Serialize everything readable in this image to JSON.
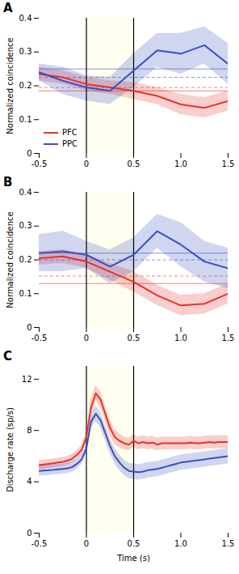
{
  "chart_data": [
    {
      "type": "line",
      "title": "A",
      "ylabel": "Normalized coincidence",
      "x": [
        -0.5,
        -0.25,
        0.0,
        0.25,
        0.5,
        0.75,
        1.0,
        1.25,
        1.5
      ],
      "series": [
        {
          "name": "PFC",
          "color": "#e8312a",
          "values": [
            0.235,
            0.225,
            0.205,
            0.195,
            0.185,
            0.17,
            0.145,
            0.135,
            0.155
          ],
          "upper": [
            0.255,
            0.245,
            0.225,
            0.215,
            0.21,
            0.195,
            0.175,
            0.165,
            0.185
          ],
          "lower": [
            0.215,
            0.205,
            0.185,
            0.175,
            0.16,
            0.145,
            0.115,
            0.105,
            0.125
          ],
          "reference_lines": [
            {
              "value": 0.185,
              "line_style": "solid"
            },
            {
              "value": 0.195,
              "line_style": "dashed"
            }
          ]
        },
        {
          "name": "PPC",
          "color": "#3a4fc0",
          "values": [
            0.24,
            0.215,
            0.195,
            0.185,
            0.245,
            0.305,
            0.295,
            0.32,
            0.265
          ],
          "upper": [
            0.265,
            0.255,
            0.23,
            0.225,
            0.295,
            0.355,
            0.355,
            0.375,
            0.325
          ],
          "lower": [
            0.215,
            0.175,
            0.155,
            0.145,
            0.195,
            0.255,
            0.235,
            0.265,
            0.205
          ],
          "reference_lines": [
            {
              "value": 0.25,
              "line_style": "solid"
            },
            {
              "value": 0.225,
              "line_style": "dashed"
            }
          ]
        }
      ],
      "shaded_region": {
        "range": [
          0.0,
          0.5
        ],
        "color": "#fffff0"
      },
      "vertical_lines": {
        "values": [
          0,
          0.5
        ],
        "color": "black"
      },
      "xlim": [
        -0.5,
        1.5
      ],
      "xticks": [
        -0.5,
        0,
        0.5,
        {
          "value": 1.0,
          "label": "1.0"
        },
        1.5
      ],
      "ylim": [
        0,
        0.4
      ],
      "yticks": [
        0,
        0.1,
        0.2,
        0.3,
        0.4
      ],
      "legend": "lower left"
    },
    {
      "type": "line",
      "title": "B",
      "ylabel": "Normalized coincidence",
      "x": [
        -0.5,
        -0.25,
        0.0,
        0.25,
        0.5,
        0.75,
        1.0,
        1.25,
        1.5
      ],
      "series": [
        {
          "color": "#e8312a",
          "values": [
            0.205,
            0.21,
            0.195,
            0.165,
            0.135,
            0.095,
            0.065,
            0.07,
            0.1
          ],
          "upper": [
            0.225,
            0.23,
            0.215,
            0.19,
            0.165,
            0.125,
            0.095,
            0.1,
            0.13
          ],
          "lower": [
            0.185,
            0.19,
            0.175,
            0.14,
            0.105,
            0.065,
            0.035,
            0.04,
            0.07
          ],
          "reference_lines": [
            {
              "value": 0.13,
              "line_style": "solid"
            },
            {
              "value": 0.152,
              "line_style": "dashed"
            }
          ]
        },
        {
          "color": "#3a4fc0",
          "values": [
            0.22,
            0.225,
            0.215,
            0.18,
            0.215,
            0.285,
            0.245,
            0.195,
            0.175
          ],
          "upper": [
            0.275,
            0.285,
            0.255,
            0.23,
            0.265,
            0.335,
            0.31,
            0.255,
            0.235
          ],
          "lower": [
            0.165,
            0.165,
            0.175,
            0.13,
            0.165,
            0.235,
            0.18,
            0.135,
            0.115
          ],
          "reference_lines": [
            {
              "value": 0.22,
              "line_style": "solid"
            },
            {
              "value": 0.2,
              "line_style": "dashed"
            }
          ]
        }
      ],
      "shaded_region": {
        "range": [
          0.0,
          0.5
        ],
        "color": "#fffff0"
      },
      "vertical_lines": {
        "values": [
          0,
          0.5
        ],
        "color": "black"
      },
      "xlim": [
        -0.5,
        1.5
      ],
      "xticks": [
        -0.5,
        0,
        0.5,
        {
          "value": 1.0,
          "label": "1.0"
        },
        1.5
      ],
      "ylim": [
        0,
        0.4
      ],
      "yticks": [
        0,
        0.1,
        0.2,
        0.3,
        0.4
      ]
    },
    {
      "type": "line",
      "title": "C",
      "ylabel": "Discharge rate (sp/s)",
      "xlabel": "Time (s)",
      "x": [
        -0.5,
        -0.45,
        -0.4,
        -0.35,
        -0.3,
        -0.25,
        -0.2,
        -0.15,
        -0.1,
        -0.05,
        0.0,
        0.05,
        0.1,
        0.15,
        0.2,
        0.25,
        0.3,
        0.35,
        0.4,
        0.45,
        0.5,
        0.55,
        0.6,
        0.65,
        0.7,
        0.75,
        0.8,
        0.85,
        0.9,
        0.95,
        1.0,
        1.05,
        1.1,
        1.15,
        1.2,
        1.25,
        1.3,
        1.35,
        1.4,
        1.45,
        1.5
      ],
      "series": [
        {
          "color": "#e8312a",
          "values": [
            5.3,
            5.35,
            5.4,
            5.45,
            5.5,
            5.55,
            5.65,
            5.8,
            6.1,
            6.5,
            7.5,
            9.8,
            10.9,
            10.4,
            9.3,
            8.2,
            7.5,
            7.2,
            7.0,
            6.9,
            7.2,
            7.0,
            7.1,
            7.0,
            7.05,
            6.9,
            7.0,
            7.0,
            7.0,
            7.0,
            7.0,
            7.0,
            7.05,
            7.0,
            7.0,
            7.05,
            7.1,
            7.05,
            7.1,
            7.1,
            7.1
          ],
          "upper": [
            5.65,
            5.7,
            5.75,
            5.8,
            5.85,
            5.9,
            6.0,
            6.15,
            6.45,
            6.85,
            7.95,
            10.5,
            11.5,
            11.0,
            9.9,
            8.8,
            8.1,
            7.75,
            7.5,
            7.4,
            7.7,
            7.5,
            7.6,
            7.5,
            7.55,
            7.4,
            7.5,
            7.5,
            7.5,
            7.5,
            7.5,
            7.5,
            7.55,
            7.5,
            7.5,
            7.55,
            7.6,
            7.55,
            7.6,
            7.6,
            7.6
          ],
          "lower": [
            4.95,
            5.0,
            5.05,
            5.1,
            5.15,
            5.2,
            5.3,
            5.45,
            5.75,
            6.15,
            7.05,
            9.1,
            10.3,
            9.8,
            8.7,
            7.6,
            6.9,
            6.65,
            6.5,
            6.4,
            6.7,
            6.5,
            6.6,
            6.5,
            6.55,
            6.4,
            6.5,
            6.5,
            6.5,
            6.5,
            6.5,
            6.5,
            6.55,
            6.5,
            6.5,
            6.55,
            6.6,
            6.55,
            6.6,
            6.6,
            6.6
          ]
        },
        {
          "color": "#3a4fc0",
          "values": [
            4.85,
            4.88,
            4.9,
            4.93,
            4.97,
            5.0,
            5.05,
            5.15,
            5.4,
            5.75,
            6.6,
            8.7,
            9.3,
            8.8,
            7.8,
            6.8,
            6.0,
            5.5,
            5.1,
            4.85,
            4.8,
            4.75,
            4.8,
            4.9,
            4.95,
            5.0,
            5.1,
            5.2,
            5.3,
            5.4,
            5.5,
            5.55,
            5.6,
            5.65,
            5.7,
            5.75,
            5.8,
            5.85,
            5.9,
            5.95,
            6.0
          ],
          "upper": [
            5.25,
            5.28,
            5.3,
            5.33,
            5.37,
            5.4,
            5.45,
            5.55,
            5.8,
            6.15,
            7.0,
            9.2,
            9.9,
            9.4,
            8.4,
            7.4,
            6.6,
            6.1,
            5.7,
            5.45,
            5.4,
            5.35,
            5.4,
            5.5,
            5.55,
            5.6,
            5.7,
            5.8,
            5.9,
            6.0,
            6.1,
            6.15,
            6.2,
            6.25,
            6.3,
            6.35,
            6.4,
            6.45,
            6.5,
            6.55,
            6.6
          ],
          "lower": [
            4.45,
            4.48,
            4.5,
            4.53,
            4.57,
            4.6,
            4.65,
            4.75,
            5.0,
            5.35,
            6.2,
            8.2,
            8.7,
            8.2,
            7.2,
            6.2,
            5.4,
            4.9,
            4.5,
            4.25,
            4.2,
            4.15,
            4.2,
            4.3,
            4.35,
            4.4,
            4.5,
            4.6,
            4.7,
            4.8,
            4.9,
            4.95,
            5.0,
            5.05,
            5.1,
            5.15,
            5.2,
            5.25,
            5.3,
            5.35,
            5.4
          ]
        }
      ],
      "shaded_region": {
        "range": [
          0.0,
          0.5
        ],
        "color": "#fffff0"
      },
      "vertical_lines": {
        "values": [
          0,
          0.5
        ],
        "color": "black"
      },
      "xlim": [
        -0.5,
        1.5
      ],
      "xticks": [
        -0.5,
        0,
        0.5,
        {
          "value": 1.0,
          "label": "1.0"
        },
        1.5
      ],
      "ylim": [
        0,
        13
      ],
      "yticks": [
        0,
        4,
        8,
        12
      ]
    }
  ]
}
